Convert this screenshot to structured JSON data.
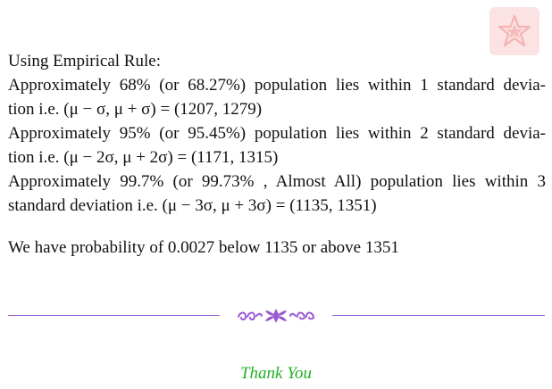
{
  "document": {
    "heading": "Using Empirical Rule:",
    "para1": {
      "line1": "Approximately 68% (or 68.27%) population lies within 1 standard devia-",
      "line2_text": "tion i.e. ",
      "line2_math": "(μ − σ, μ + σ) = (1207, 1279)"
    },
    "para2": {
      "line1": "Approximately 95% (or 95.45%) population lies within 2 standard devia-",
      "line2_text": "tion i.e. ",
      "line2_math": "(μ − 2σ, μ + 2σ) = (1171, 1315)"
    },
    "para3": {
      "line1": "Approximately 99.7% (or 99.73% , Almost All) population lies within 3",
      "line2_text": "standard deviation i.e. ",
      "line2_math": "(μ − 3σ, μ + 3σ) = (1135, 1351)"
    },
    "conclusion": "We have probability of 0.0027 below 1135 or above 1351"
  },
  "footer": {
    "thanks": "Thank You"
  },
  "colors": {
    "divider": "#9b59d0",
    "thanks": "#22b022",
    "watermark": "#f08c8c"
  },
  "icons": {
    "watermark": "star-logo-icon",
    "ornament": "floral-ornament-icon"
  }
}
